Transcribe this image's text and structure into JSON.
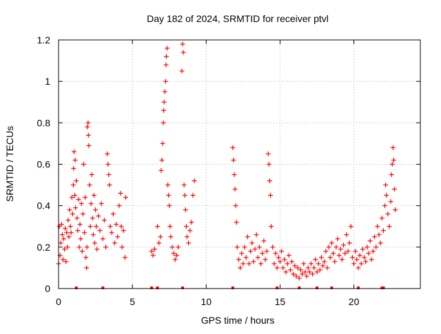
{
  "chart_data": {
    "type": "scatter",
    "title": "Day 182 of 2024, SRMTID for receiver ptvl",
    "xlabel": "GPS time / hours",
    "ylabel": "SRMTID / TECUs",
    "xlim": [
      0,
      24.5
    ],
    "ylim": [
      0,
      1.2
    ],
    "x_ticks": [
      0,
      5,
      10,
      15,
      20
    ],
    "y_ticks": [
      0,
      0.2,
      0.4,
      0.6,
      0.8,
      1,
      1.2
    ],
    "x_tick_labels": [
      "0",
      "5",
      "10",
      "15",
      "20"
    ],
    "y_tick_labels": [
      "0",
      "0.2",
      "0.4",
      "0.6",
      "0.8",
      "1",
      "1.2"
    ],
    "grid": true,
    "marker": "+",
    "marker_color": "#ff0000",
    "series": [
      {
        "name": "ptvl",
        "points": [
          [
            0.0,
            0.12
          ],
          [
            0.05,
            0.3
          ],
          [
            0.1,
            0.16
          ],
          [
            0.15,
            0.22
          ],
          [
            0.2,
            0.31
          ],
          [
            0.25,
            0.26
          ],
          [
            0.3,
            0.14
          ],
          [
            0.35,
            0.24
          ],
          [
            0.4,
            0.19
          ],
          [
            0.45,
            0.29
          ],
          [
            0.5,
            0.13
          ],
          [
            0.55,
            0.27
          ],
          [
            0.6,
            0.2
          ],
          [
            0.65,
            0.33
          ],
          [
            0.7,
            0.25
          ],
          [
            0.75,
            0.38
          ],
          [
            0.8,
            0.3
          ],
          [
            0.85,
            0.27
          ],
          [
            0.9,
            0.44
          ],
          [
            0.95,
            0.36
          ],
          [
            1.0,
            0.5
          ],
          [
            1.02,
            0.58
          ],
          [
            1.05,
            0.66
          ],
          [
            1.1,
            0.45
          ],
          [
            1.12,
            0.62
          ],
          [
            1.15,
            0.39
          ],
          [
            1.2,
            0.52
          ],
          [
            1.25,
            0.34
          ],
          [
            1.3,
            0.28
          ],
          [
            1.35,
            0.43
          ],
          [
            1.4,
            0.2
          ],
          [
            1.45,
            0.31
          ],
          [
            1.5,
            0.24
          ],
          [
            1.55,
            0.41
          ],
          [
            1.6,
            0.18
          ],
          [
            1.65,
            0.36
          ],
          [
            1.7,
            0.6
          ],
          [
            1.75,
            0.27
          ],
          [
            1.8,
            0.44
          ],
          [
            1.85,
            0.15
          ],
          [
            1.9,
            0.1
          ],
          [
            1.92,
            0.2
          ],
          [
            1.95,
            0.78
          ],
          [
            2.0,
            0.8
          ],
          [
            2.02,
            0.74
          ],
          [
            2.05,
            0.69
          ],
          [
            2.1,
            0.5
          ],
          [
            2.15,
            0.3
          ],
          [
            2.2,
            0.41
          ],
          [
            2.25,
            0.55
          ],
          [
            2.3,
            0.34
          ],
          [
            2.35,
            0.26
          ],
          [
            2.4,
            0.45
          ],
          [
            2.45,
            0.22
          ],
          [
            2.5,
            0.38
          ],
          [
            2.55,
            0.3
          ],
          [
            2.6,
            0.19
          ],
          [
            2.7,
            0.35
          ],
          [
            2.8,
            0.28
          ],
          [
            2.9,
            0.41
          ],
          [
            3.0,
            0.24
          ],
          [
            3.1,
            0.33
          ],
          [
            3.2,
            0.2
          ],
          [
            3.3,
            0.65
          ],
          [
            3.35,
            0.6
          ],
          [
            3.4,
            0.55
          ],
          [
            3.45,
            0.5
          ],
          [
            3.5,
            0.3
          ],
          [
            3.6,
            0.27
          ],
          [
            3.7,
            0.36
          ],
          [
            3.8,
            0.22
          ],
          [
            3.9,
            0.31
          ],
          [
            4.0,
            0.25
          ],
          [
            4.1,
            0.4
          ],
          [
            4.2,
            0.46
          ],
          [
            4.25,
            0.3
          ],
          [
            4.3,
            0.2
          ],
          [
            4.4,
            0.28
          ],
          [
            4.5,
            0.15
          ],
          [
            4.55,
            0.44
          ],
          [
            6.3,
            0.18
          ],
          [
            6.4,
            0.16
          ],
          [
            6.5,
            0.19
          ],
          [
            6.7,
            0.3
          ],
          [
            6.8,
            0.22
          ],
          [
            6.9,
            0.25
          ],
          [
            6.95,
            0.57
          ],
          [
            7.0,
            0.62
          ],
          [
            7.05,
            0.7
          ],
          [
            7.1,
            0.8
          ],
          [
            7.12,
            0.86
          ],
          [
            7.15,
            0.9
          ],
          [
            7.2,
            0.95
          ],
          [
            7.25,
            1.0
          ],
          [
            7.28,
            1.08
          ],
          [
            7.3,
            1.12
          ],
          [
            7.35,
            1.16
          ],
          [
            7.4,
            0.5
          ],
          [
            7.45,
            0.45
          ],
          [
            7.5,
            0.4
          ],
          [
            7.55,
            0.3
          ],
          [
            7.6,
            0.25
          ],
          [
            7.7,
            0.2
          ],
          [
            7.8,
            0.17
          ],
          [
            7.9,
            0.14
          ],
          [
            8.0,
            0.16
          ],
          [
            8.1,
            0.2
          ],
          [
            8.35,
            1.05
          ],
          [
            8.4,
            1.18
          ],
          [
            8.45,
            1.14
          ],
          [
            8.5,
            0.5
          ],
          [
            8.55,
            0.45
          ],
          [
            8.6,
            0.38
          ],
          [
            8.65,
            0.3
          ],
          [
            8.7,
            0.25
          ],
          [
            8.8,
            0.22
          ],
          [
            8.9,
            0.28
          ],
          [
            9.0,
            0.32
          ],
          [
            9.1,
            0.45
          ],
          [
            9.2,
            0.52
          ],
          [
            11.8,
            0.68
          ],
          [
            11.85,
            0.62
          ],
          [
            11.9,
            0.55
          ],
          [
            11.95,
            0.48
          ],
          [
            12.0,
            0.4
          ],
          [
            12.05,
            0.32
          ],
          [
            12.1,
            0.2
          ],
          [
            12.2,
            0.14
          ],
          [
            12.3,
            0.1
          ],
          [
            12.4,
            0.17
          ],
          [
            12.5,
            0.12
          ],
          [
            12.6,
            0.2
          ],
          [
            12.7,
            0.15
          ],
          [
            12.8,
            0.25
          ],
          [
            12.9,
            0.12
          ],
          [
            13.0,
            0.18
          ],
          [
            13.1,
            0.22
          ],
          [
            13.2,
            0.13
          ],
          [
            13.3,
            0.19
          ],
          [
            13.4,
            0.26
          ],
          [
            13.5,
            0.15
          ],
          [
            13.6,
            0.2
          ],
          [
            13.7,
            0.12
          ],
          [
            13.8,
            0.17
          ],
          [
            13.9,
            0.23
          ],
          [
            14.0,
            0.14
          ],
          [
            14.1,
            0.18
          ],
          [
            14.2,
            0.65
          ],
          [
            14.25,
            0.6
          ],
          [
            14.3,
            0.52
          ],
          [
            14.35,
            0.45
          ],
          [
            14.4,
            0.3
          ],
          [
            14.5,
            0.2
          ],
          [
            14.6,
            0.12
          ],
          [
            14.7,
            0.17
          ],
          [
            14.8,
            0.1
          ],
          [
            14.9,
            0.15
          ],
          [
            15.0,
            0.13
          ],
          [
            15.1,
            0.18
          ],
          [
            15.2,
            0.1
          ],
          [
            15.3,
            0.14
          ],
          [
            15.4,
            0.08
          ],
          [
            15.5,
            0.12
          ],
          [
            15.6,
            0.16
          ],
          [
            15.7,
            0.09
          ],
          [
            15.8,
            0.13
          ],
          [
            15.9,
            0.07
          ],
          [
            16.0,
            0.11
          ],
          [
            16.1,
            0.06
          ],
          [
            16.2,
            0.1
          ],
          [
            16.3,
            0.05
          ],
          [
            16.4,
            0.09
          ],
          [
            16.5,
            0.07
          ],
          [
            16.6,
            0.12
          ],
          [
            16.7,
            0.08
          ],
          [
            16.8,
            0.06
          ],
          [
            16.9,
            0.1
          ],
          [
            17.0,
            0.08
          ],
          [
            17.1,
            0.12
          ],
          [
            17.2,
            0.07
          ],
          [
            17.3,
            0.1
          ],
          [
            17.4,
            0.14
          ],
          [
            17.5,
            0.08
          ],
          [
            17.6,
            0.12
          ],
          [
            17.7,
            0.09
          ],
          [
            17.8,
            0.15
          ],
          [
            17.9,
            0.11
          ],
          [
            18.0,
            0.13
          ],
          [
            18.1,
            0.18
          ],
          [
            18.2,
            0.1
          ],
          [
            18.3,
            0.2
          ],
          [
            18.4,
            0.15
          ],
          [
            18.5,
            0.22
          ],
          [
            18.6,
            0.17
          ],
          [
            18.7,
            0.13
          ],
          [
            18.8,
            0.2
          ],
          [
            18.9,
            0.24
          ],
          [
            19.0,
            0.16
          ],
          [
            19.1,
            0.19
          ],
          [
            19.2,
            0.14
          ],
          [
            19.3,
            0.21
          ],
          [
            19.4,
            0.17
          ],
          [
            19.5,
            0.26
          ],
          [
            19.6,
            0.18
          ],
          [
            19.7,
            0.22
          ],
          [
            19.8,
            0.3
          ],
          [
            19.9,
            0.15
          ],
          [
            20.0,
            0.12
          ],
          [
            20.1,
            0.18
          ],
          [
            20.2,
            0.14
          ],
          [
            20.3,
            0.1
          ],
          [
            20.4,
            0.16
          ],
          [
            20.5,
            0.12
          ],
          [
            20.6,
            0.19
          ],
          [
            20.7,
            0.15
          ],
          [
            20.8,
            0.13
          ],
          [
            20.9,
            0.2
          ],
          [
            21.0,
            0.17
          ],
          [
            21.1,
            0.23
          ],
          [
            21.2,
            0.14
          ],
          [
            21.3,
            0.18
          ],
          [
            21.4,
            0.25
          ],
          [
            21.5,
            0.2
          ],
          [
            21.6,
            0.3
          ],
          [
            21.7,
            0.26
          ],
          [
            21.8,
            0.22
          ],
          [
            21.9,
            0.34
          ],
          [
            22.0,
            0.28
          ],
          [
            22.1,
            0.4
          ],
          [
            22.15,
            0.5
          ],
          [
            22.2,
            0.45
          ],
          [
            22.3,
            0.36
          ],
          [
            22.4,
            0.3
          ],
          [
            22.5,
            0.42
          ],
          [
            22.55,
            0.55
          ],
          [
            22.6,
            0.6
          ],
          [
            22.65,
            0.68
          ],
          [
            22.7,
            0.62
          ],
          [
            22.75,
            0.48
          ],
          [
            22.8,
            0.38
          ]
        ]
      }
    ],
    "baseline_markers": [
      1.2,
      3.0,
      6.3,
      6.7,
      8.4,
      11.8,
      14.8,
      16.3,
      17.5,
      18.5,
      20.3,
      21.9,
      22.0
    ]
  }
}
